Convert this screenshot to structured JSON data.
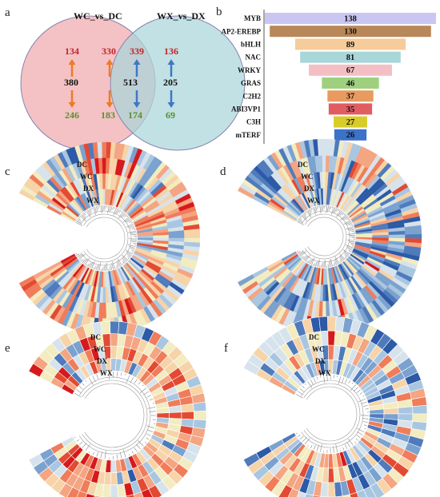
{
  "panels": {
    "a": "a",
    "b": "b",
    "c": "c",
    "d": "d",
    "e": "e",
    "f": "f"
  },
  "venn": {
    "left_title": "WC_vs_DC",
    "right_title": "WX_vs_DX",
    "left_up": "134",
    "left_total": "380",
    "left_down": "246",
    "mid_left_up": "330",
    "mid_total": "513",
    "mid_left_down": "183",
    "mid_right_up": "339",
    "mid_right_down": "174",
    "right_up": "136",
    "right_total": "205",
    "right_down": "69",
    "colors": {
      "up": "#c0252b",
      "down": "#5a8f2e",
      "orange_arrow": "#ee7a25",
      "blue_arrow": "#3e78c6",
      "left_fill": "#f4c2c4",
      "right_fill": "#a9d5d9"
    }
  },
  "chart_data": {
    "type": "bar",
    "orientation": "horizontal",
    "categories": [
      "MYB",
      "AP2-EREBP",
      "bHLH",
      "NAC",
      "WRKY",
      "GRAS",
      "C2H2",
      "ABI3VP1",
      "C3H",
      "mTERF"
    ],
    "values": [
      138,
      130,
      89,
      81,
      67,
      46,
      37,
      35,
      27,
      26
    ],
    "data_labels": [
      "138",
      "130",
      "89",
      "81",
      "67",
      "46",
      "37",
      "35",
      "27",
      "26"
    ],
    "colors": [
      "#c9c6f3",
      "#b8875a",
      "#f5cc9a",
      "#a9d6d8",
      "#f4bfc4",
      "#9fd07f",
      "#e89a5f",
      "#e05d61",
      "#d8cc28",
      "#3c72c8"
    ],
    "centered": true
  },
  "heatmap_labels": [
    "DC",
    "WC",
    "DX",
    "WX"
  ]
}
